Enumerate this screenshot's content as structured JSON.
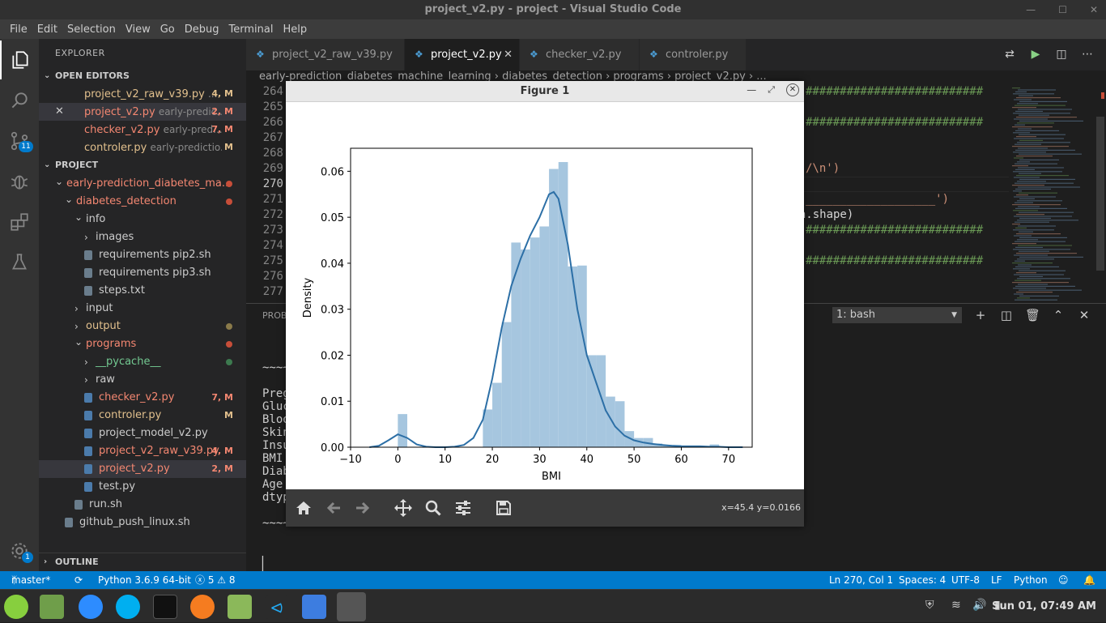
{
  "window": {
    "title": "project_v2.py - project - Visual Studio Code",
    "min": "—",
    "max": "☐",
    "close": "✕"
  },
  "menu": [
    "File",
    "Edit",
    "Selection",
    "View",
    "Go",
    "Debug",
    "Terminal",
    "Help"
  ],
  "activity": {
    "scm_badge": "11",
    "gear_badge": "1"
  },
  "sidebar": {
    "title": "EXPLORER",
    "open_editors_label": "OPEN EDITORS",
    "open_editors": [
      {
        "name": "project_v2_raw_v39.py",
        "desc": "...",
        "badge": "4, M",
        "x": ""
      },
      {
        "name": "project_v2.py",
        "desc": "early-predic...",
        "badge": "2, M",
        "x": "✕"
      },
      {
        "name": "checker_v2.py",
        "desc": "early-pred...",
        "badge": "7, M",
        "x": ""
      },
      {
        "name": "controler.py",
        "desc": "early-predictio...",
        "badge": "M",
        "x": ""
      }
    ],
    "project_label": "PROJECT",
    "tree": [
      {
        "name": "early-prediction_diabetes_ma...",
        "indent": 0,
        "caret": "⌄",
        "cls": "err",
        "dot": "#c74e39"
      },
      {
        "name": "diabetes_detection",
        "indent": 1,
        "caret": "⌄",
        "cls": "err",
        "dot": "#c74e39"
      },
      {
        "name": "info",
        "indent": 2,
        "caret": "⌄",
        "cls": "",
        "dot": ""
      },
      {
        "name": "images",
        "indent": 3,
        "caret": "›",
        "cls": "",
        "dot": ""
      },
      {
        "name": "requirements pip2.sh",
        "indent": 3,
        "caret": "",
        "cls": "",
        "dot": "",
        "file": true
      },
      {
        "name": "requirements pip3.sh",
        "indent": 3,
        "caret": "",
        "cls": "",
        "dot": "",
        "file": true
      },
      {
        "name": "steps.txt",
        "indent": 3,
        "caret": "",
        "cls": "",
        "dot": "",
        "file": true
      },
      {
        "name": "input",
        "indent": 2,
        "caret": "›",
        "cls": "",
        "dot": ""
      },
      {
        "name": "output",
        "indent": 2,
        "caret": "›",
        "cls": "mod",
        "dot": "#8a7a4a"
      },
      {
        "name": "programs",
        "indent": 2,
        "caret": "⌄",
        "cls": "err",
        "dot": "#c74e39"
      },
      {
        "name": "__pycache__",
        "indent": 3,
        "caret": "›",
        "cls": "ok",
        "dot": "#3d7a4f"
      },
      {
        "name": "raw",
        "indent": 3,
        "caret": "›",
        "cls": "",
        "dot": ""
      },
      {
        "name": "checker_v2.py",
        "indent": 3,
        "caret": "",
        "cls": "err",
        "badge": "7, M",
        "py": true
      },
      {
        "name": "controler.py",
        "indent": 3,
        "caret": "",
        "cls": "mod",
        "badge": "M",
        "py": true
      },
      {
        "name": "project_model_v2.py",
        "indent": 3,
        "caret": "",
        "cls": "",
        "py": true
      },
      {
        "name": "project_v2_raw_v39.py",
        "indent": 3,
        "caret": "",
        "cls": "err",
        "badge": "4, M",
        "py": true
      },
      {
        "name": "project_v2.py",
        "indent": 3,
        "caret": "",
        "cls": "err",
        "badge": "2, M",
        "py": true,
        "sel": true
      },
      {
        "name": "test.py",
        "indent": 3,
        "caret": "",
        "cls": "",
        "py": true
      },
      {
        "name": "run.sh",
        "indent": 2,
        "caret": "",
        "cls": "",
        "file": true
      },
      {
        "name": "github_push_linux.sh",
        "indent": 1,
        "caret": "",
        "cls": "",
        "file": true
      }
    ],
    "outline_label": "OUTLINE"
  },
  "tabs": [
    {
      "label": "project_v2_raw_v39.py",
      "active": false
    },
    {
      "label": "project_v2.py",
      "active": true
    },
    {
      "label": "checker_v2.py",
      "active": false
    },
    {
      "label": "controler.py",
      "active": false
    }
  ],
  "breadcrumb": "early-prediction_diabetes_machine_learning › diabetes_detection › programs › project_v2.py › ...",
  "editor": {
    "line_numbers": [
      "264",
      "265",
      "266",
      "267",
      "268",
      "269",
      "270",
      "271",
      "272",
      "273",
      "274",
      "275",
      "276",
      "277"
    ],
    "visible_code": [
      {
        "line": 0,
        "text": "##########################"
      },
      {
        "line": 2,
        "text": "##########################"
      },
      {
        "line": 5,
        "text": "/\\n')"
      },
      {
        "line": 7,
        "text": "___________________')"
      },
      {
        "line": 8,
        "text": "ata.shape)"
      },
      {
        "line": 9,
        "text": "##########################"
      },
      {
        "line": 11,
        "text": "##########################"
      }
    ]
  },
  "panel": {
    "tab_label": "PROB",
    "terminal_select": "1: bash",
    "lines": [
      "~~~~",
      "",
      "Preg",
      "Gluc",
      "Bloo",
      "Skin",
      "Insu",
      "BMI",
      "Diab",
      "Age",
      "dtyp",
      "",
      "~~~~"
    ],
    "cursor": "▏"
  },
  "statusbar": {
    "branch": "master*",
    "python": "Python 3.6.9 64-bit",
    "problems": "ⓧ 5 ⚠ 8",
    "position": "Ln 270, Col 1",
    "spaces": "Spaces: 4",
    "encoding": "UTF-8",
    "eol": "LF",
    "language": "Python"
  },
  "taskbar": {
    "clock": "Sun 01, 07:49 AM"
  },
  "figure": {
    "title": "Figure 1",
    "coord_readout": "x=45.4 y=0.0166"
  },
  "chart_data": {
    "type": "bar",
    "xlabel": "BMI",
    "ylabel": "Density",
    "xlim": [
      -10,
      75
    ],
    "ylim": [
      0,
      0.065
    ],
    "xticks": [
      -10,
      0,
      10,
      20,
      30,
      40,
      50,
      60,
      70
    ],
    "yticks": [
      0.0,
      0.01,
      0.02,
      0.03,
      0.04,
      0.05,
      0.06
    ],
    "bin_width": 2.0,
    "bins": [
      {
        "x": 0,
        "density": 0.0072
      },
      {
        "x": 18,
        "density": 0.0082
      },
      {
        "x": 20,
        "density": 0.014
      },
      {
        "x": 22,
        "density": 0.0272
      },
      {
        "x": 24,
        "density": 0.0445
      },
      {
        "x": 26,
        "density": 0.043
      },
      {
        "x": 28,
        "density": 0.0456
      },
      {
        "x": 30,
        "density": 0.048
      },
      {
        "x": 32,
        "density": 0.0605
      },
      {
        "x": 34,
        "density": 0.062
      },
      {
        "x": 36,
        "density": 0.0393
      },
      {
        "x": 38,
        "density": 0.0395
      },
      {
        "x": 40,
        "density": 0.02
      },
      {
        "x": 42,
        "density": 0.02
      },
      {
        "x": 44,
        "density": 0.011
      },
      {
        "x": 46,
        "density": 0.01
      },
      {
        "x": 48,
        "density": 0.0035
      },
      {
        "x": 50,
        "density": 0.002
      },
      {
        "x": 52,
        "density": 0.002
      },
      {
        "x": 54,
        "density": 0.0008
      },
      {
        "x": 56,
        "density": 0.0005
      },
      {
        "x": 58,
        "density": 0.0005
      },
      {
        "x": 60,
        "density": 0.0003
      },
      {
        "x": 62,
        "density": 0.0002
      },
      {
        "x": 64,
        "density": 0.0002
      },
      {
        "x": 66,
        "density": 0.0006
      }
    ],
    "kde": {
      "x": [
        -6,
        -4,
        -2,
        0,
        2,
        4,
        6,
        8,
        10,
        12,
        14,
        16,
        18,
        20,
        22,
        24,
        26,
        28,
        30,
        32,
        33,
        34,
        36,
        38,
        40,
        42,
        44,
        46,
        48,
        50,
        52,
        54,
        56,
        58,
        60,
        62,
        64,
        66,
        68,
        70,
        73
      ],
      "y": [
        0.0,
        0.0003,
        0.0015,
        0.0028,
        0.002,
        0.0006,
        0.0001,
        0.0,
        0.0,
        0.0001,
        0.0005,
        0.002,
        0.006,
        0.015,
        0.026,
        0.035,
        0.041,
        0.046,
        0.05,
        0.055,
        0.0555,
        0.054,
        0.044,
        0.03,
        0.02,
        0.014,
        0.008,
        0.0045,
        0.0025,
        0.0015,
        0.001,
        0.0007,
        0.0005,
        0.0003,
        0.0002,
        0.0002,
        0.0002,
        0.0001,
        0.0001,
        0.0,
        0.0
      ]
    },
    "bar_color": "#a6c6df",
    "line_color": "#2c6fa6"
  },
  "colors": {
    "accent": "#007acc",
    "modified": "#e2c08d",
    "error": "#f48771"
  }
}
